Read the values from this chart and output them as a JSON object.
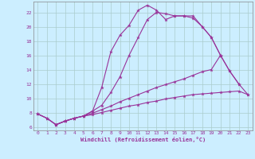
{
  "xlabel": "Windchill (Refroidissement éolien,°C)",
  "background_color": "#cceeff",
  "grid_color": "#aacccc",
  "line_color": "#993399",
  "xlim": [
    -0.5,
    23.5
  ],
  "ylim": [
    5.5,
    23.5
  ],
  "yticks": [
    6,
    8,
    10,
    12,
    14,
    16,
    18,
    20,
    22
  ],
  "xticks": [
    0,
    1,
    2,
    3,
    4,
    5,
    6,
    7,
    8,
    9,
    10,
    11,
    12,
    13,
    14,
    15,
    16,
    17,
    18,
    19,
    20,
    21,
    22,
    23
  ],
  "curve1_x": [
    0,
    1,
    2,
    3,
    4,
    5,
    6,
    7,
    8,
    9,
    10,
    11,
    12,
    13,
    14,
    15,
    16,
    17,
    18,
    19,
    20
  ],
  "curve1_y": [
    7.8,
    7.2,
    6.3,
    6.8,
    7.2,
    7.5,
    8.2,
    11.5,
    16.5,
    18.8,
    20.2,
    22.3,
    23.0,
    22.3,
    21.0,
    21.5,
    21.5,
    21.2,
    20.0,
    18.5,
    16.0
  ],
  "curve2_x": [
    2,
    3,
    4,
    5,
    6,
    7,
    8,
    9,
    10,
    11,
    12,
    13,
    14,
    15,
    16,
    17,
    18,
    19,
    20,
    21,
    22
  ],
  "curve2_y": [
    6.3,
    6.8,
    7.2,
    7.5,
    8.2,
    9.0,
    10.8,
    13.0,
    16.0,
    18.5,
    21.0,
    22.0,
    21.8,
    21.5,
    21.5,
    21.5,
    20.0,
    18.5,
    16.0,
    13.8,
    12.0
  ],
  "curve3_x": [
    0,
    1,
    2,
    3,
    4,
    5,
    6,
    7,
    8,
    9,
    10,
    11,
    12,
    13,
    14,
    15,
    16,
    17,
    18,
    19,
    20,
    21,
    22,
    23
  ],
  "curve3_y": [
    7.8,
    7.2,
    6.3,
    6.8,
    7.2,
    7.5,
    7.9,
    8.4,
    8.9,
    9.5,
    10.0,
    10.5,
    11.0,
    11.5,
    11.9,
    12.3,
    12.7,
    13.2,
    13.7,
    14.0,
    16.0,
    13.8,
    12.0,
    10.5
  ],
  "curve4_x": [
    0,
    1,
    2,
    3,
    4,
    5,
    6,
    7,
    8,
    9,
    10,
    11,
    12,
    13,
    14,
    15,
    16,
    17,
    18,
    19,
    20,
    21,
    22,
    23
  ],
  "curve4_y": [
    7.8,
    7.2,
    6.3,
    6.8,
    7.2,
    7.5,
    7.7,
    8.0,
    8.3,
    8.6,
    8.9,
    9.1,
    9.4,
    9.6,
    9.9,
    10.1,
    10.3,
    10.5,
    10.6,
    10.7,
    10.8,
    10.9,
    11.0,
    10.5
  ]
}
